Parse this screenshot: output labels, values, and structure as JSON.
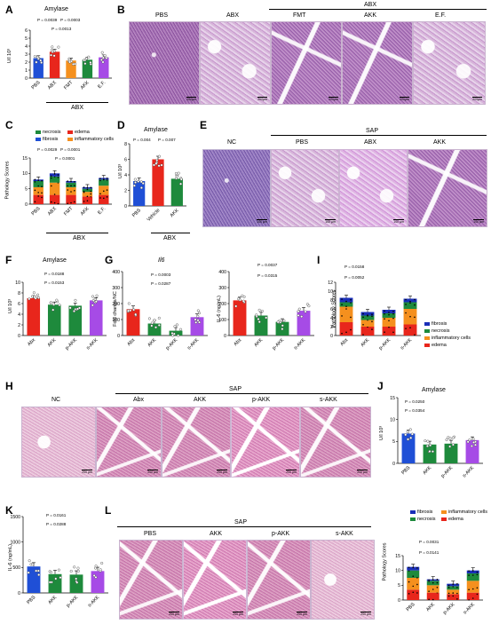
{
  "panels": {
    "A": {
      "letter": "A",
      "title": "Amylase",
      "ylabel": "U/l 10³",
      "yticks": [
        "0",
        "1",
        "2",
        "3",
        "4",
        "5",
        "6"
      ],
      "cats": [
        "PBS",
        "ABX",
        "FMT",
        "AKK",
        "E.F."
      ],
      "group": "ABX",
      "p": [
        "P = 0.0039",
        "P = 0.0003",
        "P = 0.0013"
      ]
    },
    "B": {
      "letter": "B",
      "group": "ABX",
      "labels": [
        "PBS",
        "ABX",
        "FMT",
        "AKK",
        "E.F."
      ],
      "scale": "200µm"
    },
    "C": {
      "letter": "C",
      "ylabel": "Pathology Scores",
      "yticks": [
        "0",
        "5",
        "10",
        "15"
      ],
      "cats": [
        "PBS",
        "ABX",
        "FMT",
        "AKK",
        "E.F."
      ],
      "group": "ABX",
      "legend": [
        "necrosis",
        "edema",
        "fibrosis",
        "inflammatory cells"
      ],
      "p": [
        "P = 0.0029",
        "P = 0.0001",
        "P = 0.0001"
      ]
    },
    "D": {
      "letter": "D",
      "title": "Amylase",
      "ylabel": "U/l 10³",
      "yticks": [
        "0",
        "2",
        "4",
        "6",
        "8"
      ],
      "cats": [
        "PBS",
        "Vehicle",
        "AKK"
      ],
      "group": "ABX",
      "p": [
        "P = 0.004",
        "P = 0.007"
      ]
    },
    "E": {
      "letter": "E",
      "group": "SAP",
      "labels": [
        "NC",
        "PBS",
        "ABX",
        "AKK"
      ],
      "scale": "100 µm"
    },
    "F": {
      "letter": "F",
      "title": "Amylase",
      "ylabel": "U/l 10³",
      "yticks": [
        "0",
        "2",
        "4",
        "6",
        "8",
        "10"
      ],
      "cats": [
        "Abx",
        "AKK",
        "p-AKK",
        "s-AKK"
      ],
      "p": [
        "P = 0.0188",
        "P = 0.0153"
      ]
    },
    "G1": {
      "letter": "G",
      "title": "Il6",
      "ylabel": "Fold change/NC",
      "yticks": [
        "0",
        "100",
        "200",
        "300",
        "400"
      ],
      "cats": [
        "Abx",
        "AKK",
        "p-AKK",
        "s-AKK"
      ],
      "p": [
        "P = 0.0003",
        "P = 0.0287"
      ]
    },
    "G2": {
      "ylabel": "IL-6 (ng/mL)",
      "yticks": [
        "0",
        "100",
        "200",
        "300",
        "400"
      ],
      "cats": [
        "Abx",
        "AKK",
        "p-AKK",
        "s-AKK"
      ],
      "p": [
        "P = 0.0037",
        "P = 0.0315"
      ]
    },
    "I": {
      "letter": "I",
      "ylabel": "Pathology Scores",
      "yticks": [
        "0",
        "2",
        "4",
        "6",
        "8",
        "10",
        "12"
      ],
      "cats": [
        "Abx",
        "AKK",
        "p-AKK",
        "s-AKK"
      ],
      "legend": [
        "fibrosis",
        "necrosis",
        "inflammatory cells",
        "edema"
      ],
      "p": [
        "P = 0.0158",
        "P = 0.0052"
      ]
    },
    "H": {
      "letter": "H",
      "group": "SAP",
      "labels": [
        "NC",
        "Abx",
        "AKK",
        "p-AKK",
        "s-AKK"
      ],
      "scale": "200 µm"
    },
    "J": {
      "letter": "J",
      "title": "Amylase",
      "ylabel": "U/l 10³",
      "yticks": [
        "0",
        "5",
        "10",
        "15"
      ],
      "cats": [
        "PBS",
        "AKK",
        "p-AKK",
        "s-AKK"
      ],
      "p": [
        "P = 0.0250",
        "P = 0.0354"
      ]
    },
    "K": {
      "letter": "K",
      "ylabel": "IL-6 (ng/mL)",
      "yticks": [
        "0",
        "500",
        "1000",
        "1500"
      ],
      "cats": [
        "PBS",
        "AKK",
        "p-AKK",
        "s-AKK"
      ],
      "p": [
        "P = 0.0161",
        "P = 0.0288"
      ]
    },
    "L": {
      "letter": "L",
      "group": "SAP",
      "labels": [
        "PBS",
        "AKK",
        "p-AKK",
        "s-AKK"
      ],
      "scale": "200 µm",
      "ylabel": "Pathology Scores",
      "yticks": [
        "0",
        "5",
        "10",
        "15"
      ],
      "cats": [
        "PBS",
        "AKK",
        "p-AKK",
        "s-AKK"
      ],
      "legend": [
        "fibrosis",
        "inflammatory cells",
        "necrosis",
        "edema"
      ],
      "p": [
        "P = 0.0031",
        "P = 0.0141"
      ]
    }
  },
  "colors": {
    "red": "#e8261c",
    "orange": "#f5901e",
    "green": "#1e8a3c",
    "blue": "#1f4fd6",
    "purple": "#a64be6",
    "navy": "#1a2fb8"
  },
  "chart_data": [
    {
      "type": "bar",
      "panel": "A",
      "title": "Amylase",
      "ylabel": "U/l 10³",
      "categories": [
        "PBS",
        "ABX",
        "FMT",
        "AKK",
        "E.F."
      ],
      "values": [
        2.5,
        3.3,
        2.2,
        2.3,
        2.6
      ],
      "ylim": [
        0,
        6
      ]
    },
    {
      "type": "bar",
      "panel": "C",
      "ylabel": "Pathology Scores",
      "categories": [
        "PBS",
        "ABX",
        "FMT",
        "AKK",
        "E.F."
      ],
      "series": [
        {
          "name": "edema",
          "values": [
            3,
            3,
            3,
            2.5,
            3
          ]
        },
        {
          "name": "inflammatory cells",
          "values": [
            2.5,
            4,
            2.5,
            1.5,
            3
          ]
        },
        {
          "name": "necrosis",
          "values": [
            2,
            2,
            1.5,
            1,
            2
          ]
        },
        {
          "name": "fibrosis",
          "values": [
            0.5,
            1,
            0.5,
            0.5,
            0.5
          ]
        }
      ],
      "ylim": [
        0,
        15
      ]
    },
    {
      "type": "bar",
      "panel": "D",
      "title": "Amylase",
      "ylabel": "U/l 10³",
      "categories": [
        "PBS",
        "Vehicle",
        "AKK"
      ],
      "values": [
        3.2,
        6.0,
        3.5
      ],
      "ylim": [
        0,
        8
      ]
    },
    {
      "type": "bar",
      "panel": "F",
      "title": "Amylase",
      "ylabel": "U/l 10³",
      "categories": [
        "Abx",
        "AKK",
        "p-AKK",
        "s-AKK"
      ],
      "values": [
        7.0,
        5.8,
        5.6,
        6.6
      ],
      "ylim": [
        0,
        10
      ]
    },
    {
      "type": "bar",
      "panel": "G1",
      "title": "Il6",
      "ylabel": "Fold change/NC",
      "categories": [
        "Abx",
        "AKK",
        "p-AKK",
        "s-AKK"
      ],
      "values": [
        165,
        75,
        30,
        115
      ],
      "ylim": [
        0,
        400
      ]
    },
    {
      "type": "bar",
      "panel": "G2",
      "ylabel": "IL-6 (ng/mL)",
      "categories": [
        "Abx",
        "AKK",
        "p-AKK",
        "s-AKK"
      ],
      "values": [
        220,
        125,
        85,
        155
      ],
      "ylim": [
        0,
        400
      ]
    },
    {
      "type": "bar",
      "panel": "I",
      "ylabel": "Pathology Scores",
      "categories": [
        "Abx",
        "AKK",
        "p-AKK",
        "s-AKK"
      ],
      "series": [
        {
          "name": "edema",
          "values": [
            3,
            2,
            2,
            2.5
          ]
        },
        {
          "name": "inflammatory cells",
          "values": [
            3.5,
            1.5,
            2,
            3.5
          ]
        },
        {
          "name": "necrosis",
          "values": [
            1,
            1,
            1,
            1.5
          ]
        },
        {
          "name": "fibrosis",
          "values": [
            1,
            0.8,
            0.8,
            0.8
          ]
        }
      ],
      "ylim": [
        0,
        12
      ]
    },
    {
      "type": "bar",
      "panel": "J",
      "title": "Amylase",
      "ylabel": "U/l 10³",
      "categories": [
        "PBS",
        "AKK",
        "p-AKK",
        "s-AKK"
      ],
      "values": [
        6.8,
        4.3,
        4.5,
        5.3
      ],
      "ylim": [
        0,
        15
      ]
    },
    {
      "type": "bar",
      "panel": "K",
      "ylabel": "IL-6 (ng/mL)",
      "categories": [
        "PBS",
        "AKK",
        "p-AKK",
        "s-AKK"
      ],
      "values": [
        520,
        370,
        360,
        430
      ],
      "ylim": [
        0,
        1500
      ]
    },
    {
      "type": "bar",
      "panel": "L",
      "ylabel": "Pathology Scores",
      "categories": [
        "PBS",
        "AKK",
        "p-AKK",
        "s-AKK"
      ],
      "series": [
        {
          "name": "edema",
          "values": [
            3.5,
            2.5,
            2,
            2.5
          ]
        },
        {
          "name": "inflammatory cells",
          "values": [
            4,
            2.5,
            1.5,
            4
          ]
        },
        {
          "name": "necrosis",
          "values": [
            2.5,
            1.5,
            1.2,
            2.5
          ]
        },
        {
          "name": "fibrosis",
          "values": [
            1.2,
            0.5,
            0.8,
            1.0
          ]
        }
      ],
      "ylim": [
        0,
        15
      ]
    }
  ]
}
